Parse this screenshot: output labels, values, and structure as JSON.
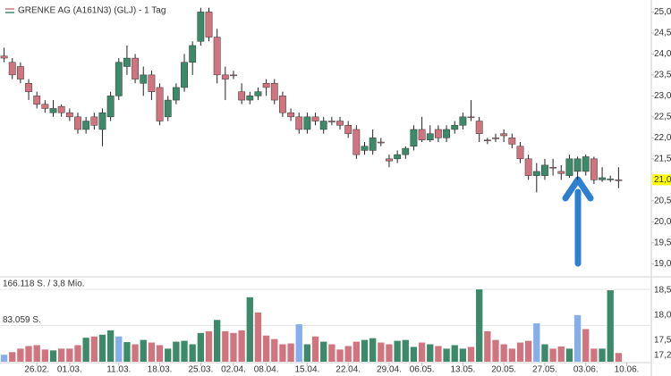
{
  "chart_data": {
    "type": "candlestick",
    "title": "GRENKE AG (A161N3) (GLJ) - 1 Tag",
    "open": [
      23.95,
      23.8,
      23.7,
      23.3,
      23.0,
      22.8,
      22.6,
      22.75,
      22.6,
      22.5,
      22.2,
      22.5,
      22.2,
      22.5,
      23.0,
      23.7,
      23.9,
      23.3,
      23.5,
      23.2,
      22.5,
      22.9,
      23.2,
      23.8,
      24.3,
      25.0,
      24.4,
      23.5,
      23.5,
      23.1,
      22.9,
      23.0,
      23.3,
      23.3,
      23.0,
      22.6,
      22.5,
      22.2,
      22.5,
      22.2,
      22.4,
      22.4,
      22.3,
      22.2,
      21.7,
      21.7,
      21.9,
      21.5,
      21.5,
      21.6,
      21.8,
      22.2,
      21.95,
      22.2,
      22.0,
      22.2,
      22.3,
      22.5,
      22.4,
      21.95,
      22.0,
      22.1,
      22.0,
      21.8,
      21.5,
      21.1,
      21.1,
      21.3,
      21.2,
      21.1,
      21.2,
      21.2,
      21.5,
      21.0,
      21.0,
      21.0
    ],
    "high": [
      24.15,
      23.9,
      23.8,
      23.4,
      23.1,
      22.9,
      22.9,
      22.8,
      22.7,
      22.6,
      22.5,
      22.6,
      22.7,
      23.1,
      23.9,
      24.2,
      24.0,
      23.7,
      23.6,
      23.3,
      23.0,
      23.3,
      24.0,
      24.3,
      25.1,
      25.1,
      24.6,
      23.7,
      23.6,
      23.3,
      23.1,
      23.2,
      23.4,
      23.4,
      23.1,
      22.7,
      22.6,
      22.6,
      22.6,
      22.5,
      22.5,
      22.5,
      22.4,
      22.3,
      21.9,
      22.2,
      22.0,
      21.6,
      21.7,
      21.8,
      22.3,
      22.5,
      22.3,
      22.3,
      22.3,
      22.4,
      22.6,
      22.9,
      22.5,
      22.0,
      22.1,
      22.2,
      22.1,
      21.9,
      21.6,
      21.4,
      21.5,
      21.5,
      21.35,
      21.6,
      21.55,
      21.6,
      21.55,
      21.3,
      21.1,
      21.3
    ],
    "low": [
      23.8,
      23.4,
      23.3,
      22.9,
      22.7,
      22.6,
      22.5,
      22.5,
      22.4,
      22.1,
      22.1,
      22.2,
      21.8,
      22.4,
      22.9,
      23.5,
      23.3,
      23.0,
      22.9,
      22.3,
      22.4,
      22.8,
      23.1,
      23.5,
      24.2,
      24.3,
      23.3,
      22.9,
      23.4,
      22.8,
      22.8,
      22.9,
      23.0,
      22.8,
      22.5,
      22.4,
      22.1,
      22.1,
      22.3,
      22.1,
      22.3,
      22.2,
      22.0,
      21.5,
      21.6,
      21.6,
      21.8,
      21.3,
      21.4,
      21.5,
      21.7,
      21.9,
      21.9,
      21.9,
      21.9,
      22.1,
      22.2,
      22.4,
      21.9,
      21.85,
      21.9,
      21.9,
      21.75,
      21.4,
      21.0,
      20.7,
      21.0,
      21.1,
      21.0,
      21.05,
      21.0,
      21.1,
      20.9,
      20.95,
      20.95,
      20.8
    ],
    "close": [
      23.9,
      23.5,
      23.4,
      23.1,
      22.8,
      22.7,
      22.7,
      22.6,
      22.5,
      22.2,
      22.4,
      22.3,
      22.6,
      23.0,
      23.8,
      23.9,
      23.4,
      23.5,
      23.1,
      22.4,
      22.9,
      23.2,
      23.8,
      24.2,
      25.0,
      24.4,
      23.5,
      23.4,
      23.5,
      22.9,
      23.0,
      23.1,
      23.2,
      22.9,
      22.6,
      22.5,
      22.2,
      22.5,
      22.4,
      22.4,
      22.4,
      22.3,
      22.1,
      21.6,
      21.8,
      22.0,
      21.9,
      21.45,
      21.6,
      21.75,
      22.2,
      21.95,
      22.1,
      22.0,
      22.2,
      22.3,
      22.5,
      22.5,
      22.1,
      21.95,
      22.0,
      22.05,
      21.85,
      21.5,
      21.1,
      21.2,
      21.35,
      21.3,
      21.15,
      21.5,
      21.5,
      21.55,
      21.0,
      21.05,
      21.02,
      21.0
    ],
    "up_color": "#3d8a6a",
    "down_color": "#d0757f",
    "xlim": [
      -0.5,
      79
    ],
    "xticks": [
      {
        "value": 4,
        "label": "26.02."
      },
      {
        "value": 8,
        "label": "01.03."
      },
      {
        "value": 14,
        "label": "11.03."
      },
      {
        "value": 19,
        "label": "18.03."
      },
      {
        "value": 24,
        "label": "25.03."
      },
      {
        "value": 28,
        "label": "02.04."
      },
      {
        "value": 32,
        "label": "08.04."
      },
      {
        "value": 37,
        "label": "15.04."
      },
      {
        "value": 42,
        "label": "22.04."
      },
      {
        "value": 47,
        "label": "29.04."
      },
      {
        "value": 51,
        "label": "06.05."
      },
      {
        "value": 56,
        "label": "13.05."
      },
      {
        "value": 61,
        "label": "20.05."
      },
      {
        "value": 66,
        "label": "27.05."
      },
      {
        "value": 71,
        "label": "03.06."
      },
      {
        "value": 76,
        "label": "10.06."
      }
    ],
    "ylim": [
      18.9,
      25.2
    ],
    "yticks": [
      {
        "value": 19,
        "label": "19,00"
      },
      {
        "value": 19.5,
        "label": "19,50"
      },
      {
        "value": 20,
        "label": "20,00"
      },
      {
        "value": 20.5,
        "label": "20,50"
      },
      {
        "value": 21.5,
        "label": "21,50"
      },
      {
        "value": 22,
        "label": "22,00"
      },
      {
        "value": 22.5,
        "label": "22,50"
      },
      {
        "value": 23,
        "label": "23,00"
      },
      {
        "value": 23.5,
        "label": "23,50"
      },
      {
        "value": 24,
        "label": "24,00"
      },
      {
        "value": 24.5,
        "label": "24,50"
      },
      {
        "value": 25,
        "label": "25,00"
      }
    ],
    "last_price": {
      "value": 21.0,
      "label": "21,00",
      "color": "#ffff00"
    },
    "volume": {
      "values": [
        16000,
        22000,
        30000,
        36000,
        38000,
        28000,
        26000,
        30000,
        30000,
        38000,
        55000,
        58000,
        62000,
        72000,
        58000,
        45000,
        40000,
        50000,
        44000,
        38000,
        30000,
        46000,
        48000,
        40000,
        66000,
        70000,
        96000,
        70000,
        66000,
        72000,
        148000,
        113000,
        60000,
        52000,
        40000,
        42000,
        86000,
        40000,
        58000,
        46000,
        40000,
        28000,
        36000,
        46000,
        50000,
        54000,
        44000,
        40000,
        48000,
        50000,
        34000,
        44000,
        40000,
        36000,
        30000,
        38000,
        30000,
        34000,
        166000,
        70000,
        50000,
        40000,
        30000,
        44000,
        48000,
        88000,
        40000,
        30000,
        35000,
        30000,
        107000,
        75000,
        30000,
        30000,
        164000,
        20000
      ],
      "colors": [
        "#85aeea",
        "#d0757f",
        "#d0757f",
        "#d0757f",
        "#d0757f",
        "#d0757f",
        "#3d8a6a",
        "#d0757f",
        "#d0757f",
        "#d0757f",
        "#3d8a6a",
        "#d0757f",
        "#3d8a6a",
        "#3d8a6a",
        "#85aeea",
        "#3d8a6a",
        "#d0757f",
        "#3d8a6a",
        "#d0757f",
        "#d0757f",
        "#3d8a6a",
        "#3d8a6a",
        "#3d8a6a",
        "#3d8a6a",
        "#3d8a6a",
        "#d0757f",
        "#3d8a6a",
        "#d0757f",
        "#d0757f",
        "#d0757f",
        "#3d8a6a",
        "#d0757f",
        "#d0757f",
        "#d0757f",
        "#d0757f",
        "#d0757f",
        "#85aeea",
        "#3d8a6a",
        "#d0757f",
        "#3d8a6a",
        "#d0757f",
        "#d0757f",
        "#d0757f",
        "#d0757f",
        "#3d8a6a",
        "#3d8a6a",
        "#d0757f",
        "#d0757f",
        "#3d8a6a",
        "#3d8a6a",
        "#3d8a6a",
        "#d0757f",
        "#3d8a6a",
        "#d0757f",
        "#3d8a6a",
        "#3d8a6a",
        "#3d8a6a",
        "#d0757f",
        "#3d8a6a",
        "#d0757f",
        "#d0757f",
        "#d0757f",
        "#d0757f",
        "#d0757f",
        "#d0757f",
        "#85aeea",
        "#3d8a6a",
        "#d0757f",
        "#d0757f",
        "#3d8a6a",
        "#85aeea",
        "#d0757f",
        "#d0757f",
        "#3d8a6a",
        "#3d8a6a",
        "#d0757f"
      ],
      "ylim": [
        0,
        166118
      ],
      "yticks": [
        {
          "value": 166118,
          "label": "166.118 S. / 3,8 Mio."
        },
        {
          "value": 83059,
          "label": "83.059 S."
        }
      ],
      "axis_labels": [
        "18,50",
        "18,00",
        "17,50",
        "17,20"
      ]
    }
  }
}
